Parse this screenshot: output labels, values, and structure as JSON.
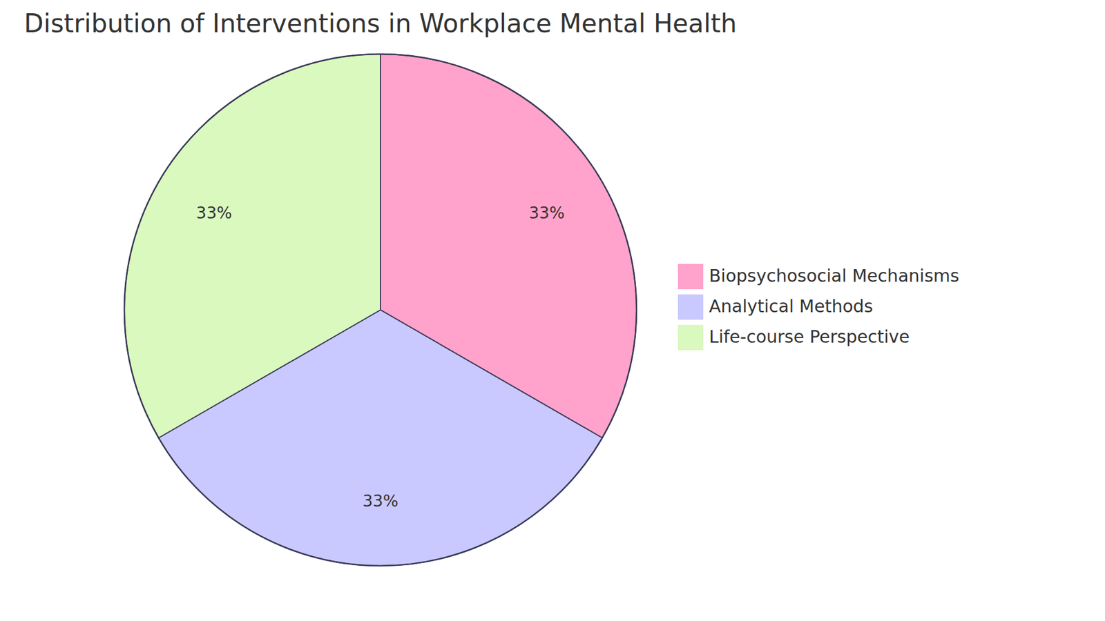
{
  "chart_data": {
    "type": "pie",
    "title": "Distribution of Interventions in Workplace Mental Health",
    "categories": [
      "Biopsychosocial Mechanisms",
      "Analytical Methods",
      "Life-course Perspective"
    ],
    "values": [
      33,
      33,
      33
    ],
    "value_labels": [
      "33%",
      "33%",
      "33%"
    ],
    "colors": [
      "#ffa3cc",
      "#c9c9ff",
      "#daf9be"
    ],
    "data_labels": true,
    "legend": "right"
  }
}
